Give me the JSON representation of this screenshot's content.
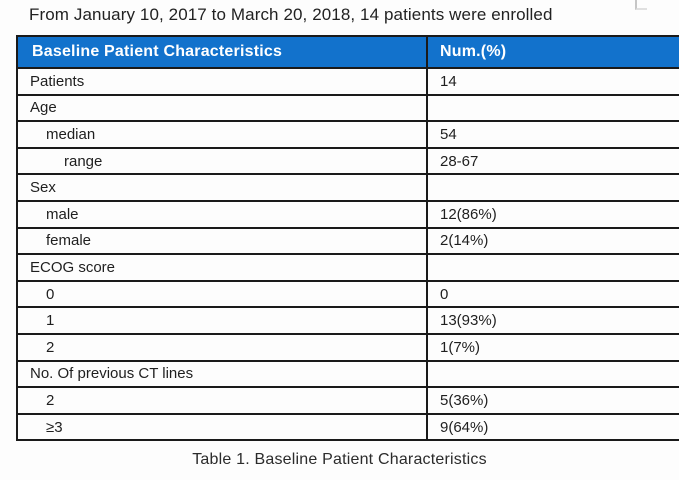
{
  "intro": "From January 10, 2017 to March 20, 2018, 14 patients were enrolled",
  "table": {
    "columns": [
      "Baseline Patient Characteristics",
      "Num.(%)"
    ],
    "rows": [
      {
        "label": "Patients",
        "value": "14",
        "indent": 0
      },
      {
        "label": "Age",
        "value": "",
        "indent": 0
      },
      {
        "label": "median",
        "value": "54",
        "indent": 1
      },
      {
        "label": "range",
        "value": "28-67",
        "indent": 2
      },
      {
        "label": "Sex",
        "value": "",
        "indent": 0
      },
      {
        "label": "male",
        "value": "12(86%)",
        "indent": 1
      },
      {
        "label": "female",
        "value": "2(14%)",
        "indent": 1
      },
      {
        "label": "ECOG score",
        "value": "",
        "indent": 0
      },
      {
        "label": "0",
        "value": "0",
        "indent": 1
      },
      {
        "label": "1",
        "value": "13(93%)",
        "indent": 1
      },
      {
        "label": "2",
        "value": "1(7%)",
        "indent": 1
      },
      {
        "label": "No. Of previous CT lines",
        "value": "",
        "indent": 0
      },
      {
        "label": "2",
        "value": "5(36%)",
        "indent": 1
      },
      {
        "label": "≥3",
        "value": "9(64%)",
        "indent": 1
      }
    ]
  },
  "caption": "Table 1. Baseline Patient Characteristics",
  "colors": {
    "header_bg": "#1272CC",
    "header_text": "#FFFFFF",
    "border": "#1A1A1A",
    "text": "#1F1F1F"
  }
}
